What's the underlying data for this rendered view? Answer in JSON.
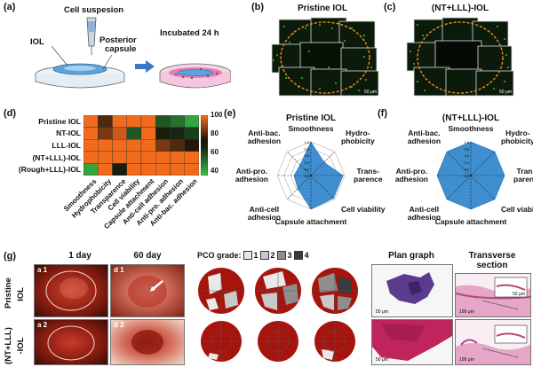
{
  "panel_a": {
    "label": "(a)",
    "title": "Cell suspesion",
    "iol": "IOL",
    "posterior": "Posterior",
    "capsule": "capsule",
    "incubated": "Incubated 24 h"
  },
  "panel_b": {
    "label": "(b)",
    "title": "Pristine IOL",
    "scale": "50 μm"
  },
  "panel_c": {
    "label": "(c)",
    "title": "(NT+LLL)-IOL",
    "scale": "50 μm"
  },
  "panel_d": {
    "label": "(d)",
    "rows": [
      "Pristine IOL",
      "NT-IOL",
      "LLL-IOL",
      "(NT+LLL)-IOL",
      "(Rough+LLL)-IOL"
    ],
    "columns": [
      "Smoothness",
      "Hydrophobicity",
      "Transparence",
      "Cell viability",
      "Capsule attachment",
      "Anti-cell adhesion",
      "Anti-pro. adhesion",
      "Anti-bac. adhesion"
    ],
    "colorbar_ticks": [
      "100",
      "80",
      "60",
      "40"
    ]
  },
  "panel_e": {
    "label": "(e)",
    "title": "Pristine IOL",
    "axes": [
      "Smoothness",
      "Hydro-\nphobicity",
      "Trans-\nparence",
      "Cell viability",
      "Capsule attachment",
      "Anti-cell\nadhesion",
      "Anti-pro.\nadhesion",
      "Anti-bac.\nadhesion"
    ],
    "rings": [
      "1.0",
      "0.8",
      "0.6",
      "0.4",
      "0.2",
      "0.0"
    ]
  },
  "panel_f": {
    "label": "(f)",
    "title": "(NT+LLL)-IOL",
    "axes": [
      "Smoothness",
      "Hydro-\nphobicity",
      "Trans-\nparence",
      "Cell viability",
      "Capsule attachment",
      "Anti-cell\nadhesion",
      "Anti-pro.\nadhesion",
      "Anti-bac.\nadhesion"
    ],
    "rings": [
      "1.0",
      "0.8",
      "0.6",
      "0.4",
      "0.2",
      "0.0"
    ]
  },
  "panel_g": {
    "label": "(g)",
    "col_1day": "1 day",
    "col_60day": "60 day",
    "pco_grade": "PCO grade:",
    "grades": [
      "1",
      "2",
      "3",
      "4"
    ],
    "plan_graph": "Plan graph",
    "transverse": "Transverse",
    "section": "section",
    "row1a": "Pristine",
    "row1b": "IOL",
    "row2a": "(NT+LLL)",
    "row2b": "-IOL",
    "photo_labels": [
      "a 1",
      "d 1",
      "b 1",
      "c 1",
      "d 1",
      "a 2",
      "d 2",
      "b 2",
      "c 2",
      "d 2"
    ],
    "scales": [
      "50 μm",
      "50 μm",
      "100 μm",
      "50 μm",
      "100 μm"
    ]
  },
  "colors": {
    "iol_blue": "#5ba3d9",
    "radar_blue": "#3f8fd0",
    "fluo_green": "#49c24a",
    "outline_orange": "#e38b1c",
    "heat_orange": "#f26b1d",
    "heat_green": "#2aa13a",
    "stain_pink": "#d9509a",
    "stain_purple": "#5b3b8e"
  },
  "chart_data": [
    {
      "type": "heatmap",
      "rows": [
        "Pristine IOL",
        "NT-IOL",
        "LLL-IOL",
        "(NT+LLL)-IOL",
        "(Rough+LLL)-IOL"
      ],
      "columns": [
        "Smoothness",
        "Hydrophobicity",
        "Transparence",
        "Cell viability",
        "Capsule attachment",
        "Anti-cell adhesion",
        "Anti-pro. adhesion",
        "Anti-bac. adhesion"
      ],
      "values": [
        [
          100,
          80,
          100,
          100,
          100,
          55,
          50,
          40
        ],
        [
          100,
          85,
          95,
          55,
          100,
          70,
          65,
          60
        ],
        [
          100,
          100,
          100,
          100,
          100,
          85,
          80,
          75
        ],
        [
          100,
          100,
          100,
          100,
          100,
          100,
          100,
          100
        ],
        [
          40,
          100,
          70,
          100,
          100,
          100,
          100,
          100
        ]
      ],
      "colorbar_range": [
        35,
        100
      ],
      "colorbar_ticks": [
        100,
        80,
        60,
        40
      ]
    },
    {
      "type": "radar",
      "title": "Pristine IOL",
      "axes": [
        "Smoothness",
        "Hydrophobicity",
        "Transparence",
        "Cell viability",
        "Capsule attachment",
        "Anti-cell adhesion",
        "Anti-pro. adhesion",
        "Anti-bac. adhesion"
      ],
      "values": [
        1.0,
        0.55,
        0.95,
        0.95,
        1.0,
        0.55,
        0.5,
        0.45
      ],
      "rlim": [
        0,
        1.0
      ]
    },
    {
      "type": "radar",
      "title": "(NT+LLL)-IOL",
      "axes": [
        "Smoothness",
        "Hydrophobicity",
        "Transparence",
        "Cell viability",
        "Capsule attachment",
        "Anti-cell adhesion",
        "Anti-pro. adhesion",
        "Anti-bac. adhesion"
      ],
      "values": [
        1.0,
        1.0,
        1.0,
        1.0,
        1.0,
        1.0,
        1.0,
        1.0
      ],
      "rlim": [
        0,
        1.0
      ]
    }
  ]
}
